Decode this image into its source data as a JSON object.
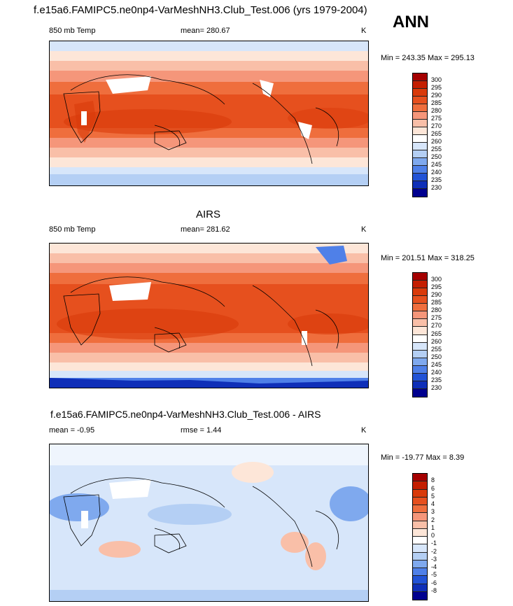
{
  "header": {
    "title": "f.e15a6.FAMIPC5.ne0np4-VarMeshNH3.Club_Test.006 (yrs 1979-2004)",
    "season": "ANN"
  },
  "panels": [
    {
      "title": "",
      "left_label": "850 mb Temp",
      "center_label": "mean= 280.67",
      "right_label": "K",
      "minmax": "Min = 243.35 Max = 295.13",
      "colorbar_ticks": [
        "300",
        "295",
        "290",
        "285",
        "280",
        "275",
        "270",
        "265",
        "260",
        "255",
        "250",
        "245",
        "240",
        "235",
        "230"
      ],
      "colorbar_colors": [
        "#a50000",
        "#c41e00",
        "#d93a0a",
        "#e6501e",
        "#ef6e3d",
        "#f5967a",
        "#f9bfa8",
        "#fde6d8",
        "#ffffff",
        "#d7e6fa",
        "#b4cff4",
        "#7fa9ee",
        "#4f80e8",
        "#2253d6",
        "#0f2fb8",
        "#00008f"
      ]
    },
    {
      "title": "AIRS",
      "left_label": "850 mb Temp",
      "center_label": "mean= 281.62",
      "right_label": "K",
      "minmax": "Min = 201.51 Max = 318.25",
      "colorbar_ticks": [
        "300",
        "295",
        "290",
        "285",
        "280",
        "275",
        "270",
        "265",
        "260",
        "255",
        "250",
        "245",
        "240",
        "235",
        "230"
      ],
      "colorbar_colors": [
        "#a50000",
        "#c41e00",
        "#d93a0a",
        "#e6501e",
        "#ef6e3d",
        "#f5967a",
        "#f9bfa8",
        "#fde6d8",
        "#ffffff",
        "#d7e6fa",
        "#b4cff4",
        "#7fa9ee",
        "#4f80e8",
        "#2253d6",
        "#0f2fb8",
        "#00008f"
      ]
    },
    {
      "title": "f.e15a6.FAMIPC5.ne0np4-VarMeshNH3.Club_Test.006 - AIRS",
      "left_label": "mean =  -0.95",
      "center_label": "rmse =   1.44",
      "right_label": "K",
      "minmax": "Min = -19.77 Max =   8.39",
      "colorbar_ticks": [
        "8",
        "6",
        "5",
        "4",
        "3",
        "2",
        "1",
        "0",
        "-1",
        "-2",
        "-3",
        "-4",
        "-5",
        "-6",
        "-8"
      ],
      "colorbar_colors": [
        "#a50000",
        "#c41e00",
        "#d93a0a",
        "#e6501e",
        "#ef6e3d",
        "#f5967a",
        "#f9bfa8",
        "#fde6d8",
        "#ffffff",
        "#d7e6fa",
        "#b4cff4",
        "#7fa9ee",
        "#4f80e8",
        "#2253d6",
        "#0f2fb8",
        "#00008f"
      ]
    }
  ]
}
